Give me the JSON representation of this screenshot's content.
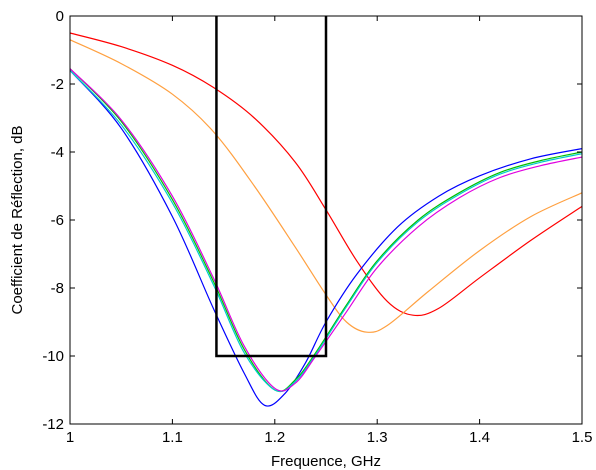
{
  "chart_data": {
    "type": "line",
    "title": "",
    "xlabel": "Frequence, GHz",
    "ylabel": "Coefficient de Réflection, dB",
    "xlim": [
      1,
      1.5
    ],
    "ylim": [
      -12,
      0
    ],
    "xticks": [
      1,
      1.1,
      1.2,
      1.3,
      1.4,
      1.5
    ],
    "xtick_labels": [
      "1",
      "1.1",
      "1.2",
      "1.3",
      "1.4",
      "1.5"
    ],
    "yticks": [
      0,
      -2,
      -4,
      -6,
      -8,
      -10,
      -12
    ],
    "ytick_labels": [
      "0",
      "-2",
      "-4",
      "-6",
      "-8",
      "-10",
      "-12"
    ],
    "grid": false,
    "series": [
      {
        "color": "#ff0000",
        "x": [
          1.0,
          1.05,
          1.1,
          1.14,
          1.18,
          1.22,
          1.25,
          1.28,
          1.31,
          1.335,
          1.36,
          1.4,
          1.45,
          1.5
        ],
        "y": [
          -0.5,
          -0.9,
          -1.45,
          -2.1,
          -3.0,
          -4.3,
          -5.7,
          -7.2,
          -8.4,
          -8.8,
          -8.6,
          -7.7,
          -6.6,
          -5.6
        ]
      },
      {
        "color": "#ffa040",
        "x": [
          1.0,
          1.05,
          1.1,
          1.14,
          1.18,
          1.22,
          1.25,
          1.27,
          1.29,
          1.31,
          1.35,
          1.4,
          1.45,
          1.5
        ],
        "y": [
          -0.7,
          -1.4,
          -2.3,
          -3.4,
          -5.0,
          -6.8,
          -8.2,
          -9.0,
          -9.3,
          -9.1,
          -8.1,
          -6.9,
          -5.9,
          -5.2
        ]
      },
      {
        "color": "#0000ff",
        "x": [
          1.0,
          1.05,
          1.1,
          1.14,
          1.17,
          1.19,
          1.21,
          1.23,
          1.25,
          1.28,
          1.32,
          1.36,
          1.4,
          1.45,
          1.5
        ],
        "y": [
          -1.6,
          -3.3,
          -5.9,
          -8.6,
          -10.5,
          -11.45,
          -11.1,
          -10.2,
          -9.0,
          -7.6,
          -6.2,
          -5.3,
          -4.7,
          -4.2,
          -3.9
        ]
      },
      {
        "color": "#00c000",
        "x": [
          1.0,
          1.05,
          1.1,
          1.14,
          1.17,
          1.2,
          1.22,
          1.24,
          1.27,
          1.3,
          1.34,
          1.38,
          1.42,
          1.46,
          1.5
        ],
        "y": [
          -1.55,
          -3.1,
          -5.4,
          -7.8,
          -9.8,
          -11.0,
          -10.7,
          -9.9,
          -8.5,
          -7.2,
          -6.0,
          -5.2,
          -4.6,
          -4.25,
          -4.0
        ]
      },
      {
        "color": "#00cccc",
        "x": [
          1.0,
          1.05,
          1.1,
          1.14,
          1.17,
          1.2,
          1.22,
          1.24,
          1.27,
          1.3,
          1.34,
          1.38,
          1.42,
          1.46,
          1.5
        ],
        "y": [
          -1.6,
          -3.2,
          -5.5,
          -7.9,
          -9.9,
          -11.0,
          -10.75,
          -9.95,
          -8.55,
          -7.25,
          -6.05,
          -5.25,
          -4.65,
          -4.3,
          -4.05
        ]
      },
      {
        "color": "#e000e0",
        "x": [
          1.0,
          1.05,
          1.1,
          1.14,
          1.17,
          1.2,
          1.22,
          1.24,
          1.27,
          1.3,
          1.34,
          1.38,
          1.42,
          1.46,
          1.5
        ],
        "y": [
          -1.55,
          -3.05,
          -5.3,
          -7.7,
          -9.7,
          -10.95,
          -10.8,
          -10.0,
          -8.7,
          -7.4,
          -6.2,
          -5.35,
          -4.75,
          -4.4,
          -4.15
        ]
      },
      {
        "color": "#000000",
        "x": [
          1.143,
          1.143,
          1.25,
          1.25
        ],
        "y": [
          0,
          -10,
          -10,
          0
        ]
      }
    ]
  }
}
